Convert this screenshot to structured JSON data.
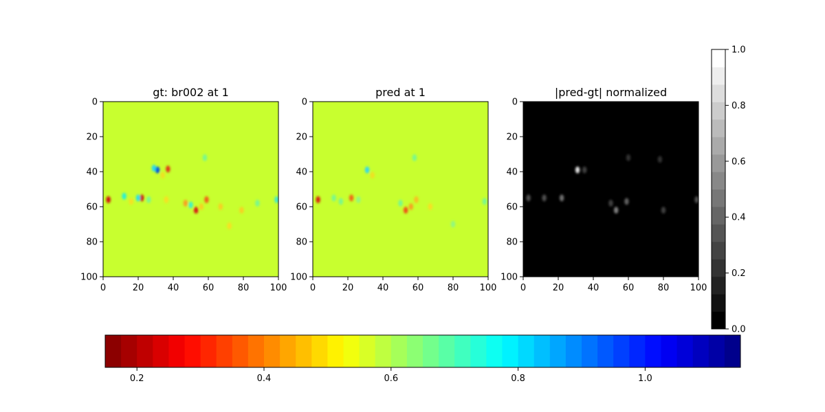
{
  "chart_data": [
    {
      "type": "heatmap",
      "title": "gt: br002 at 1",
      "colormap": "jet (reversed)",
      "background_color": "#c8ff2f",
      "xlim": [
        0,
        100
      ],
      "ylim": [
        100,
        0
      ],
      "xticks": [
        "0",
        "20",
        "40",
        "60",
        "80",
        "100"
      ],
      "yticks": [
        "0",
        "20",
        "40",
        "60",
        "80",
        "100"
      ],
      "blobs": [
        {
          "x": 3,
          "y": 56,
          "color": "#d01010"
        },
        {
          "x": 31,
          "y": 39,
          "color": "#0050e0"
        },
        {
          "x": 34,
          "y": 42,
          "color": "#f0e020"
        },
        {
          "x": 37,
          "y": 38.5,
          "color": "#e03818"
        },
        {
          "x": 22,
          "y": 55,
          "color": "#c81010"
        },
        {
          "x": 12,
          "y": 54,
          "color": "#28f0d8"
        },
        {
          "x": 20,
          "y": 55,
          "color": "#28e0e8"
        },
        {
          "x": 53,
          "y": 62,
          "color": "#d81818"
        },
        {
          "x": 59,
          "y": 56,
          "color": "#f06018"
        },
        {
          "x": 67,
          "y": 60,
          "color": "#f8d020"
        },
        {
          "x": 50,
          "y": 59,
          "color": "#40f0c8"
        },
        {
          "x": 99,
          "y": 56,
          "color": "#40e8d0"
        },
        {
          "x": 79,
          "y": 62,
          "color": "#f8d020"
        },
        {
          "x": 88,
          "y": 58,
          "color": "#78f890"
        },
        {
          "x": 16,
          "y": 57,
          "color": "#f8e020"
        },
        {
          "x": 47,
          "y": 58,
          "color": "#f8a020"
        },
        {
          "x": 29,
          "y": 38,
          "color": "#28d8f0"
        },
        {
          "x": 56,
          "y": 60,
          "color": "#f8d020"
        },
        {
          "x": 72,
          "y": 71,
          "color": "#f8e020"
        },
        {
          "x": 58,
          "y": 32,
          "color": "#78f890"
        },
        {
          "x": 26,
          "y": 56,
          "color": "#78f890"
        },
        {
          "x": 36,
          "y": 56,
          "color": "#f8e020"
        }
      ]
    },
    {
      "type": "heatmap",
      "title": "pred at 1",
      "colormap": "jet (reversed)",
      "background_color": "#c8ff2f",
      "xlim": [
        0,
        100
      ],
      "ylim": [
        100,
        0
      ],
      "xticks": [
        "0",
        "20",
        "40",
        "60",
        "80",
        "100"
      ],
      "yticks": [
        "0",
        "20",
        "40",
        "60",
        "80",
        "100"
      ],
      "blobs": [
        {
          "x": 3,
          "y": 56,
          "color": "#d82010"
        },
        {
          "x": 31,
          "y": 39,
          "color": "#30d8f0"
        },
        {
          "x": 34,
          "y": 42,
          "color": "#f0e020"
        },
        {
          "x": 22,
          "y": 55,
          "color": "#f06818"
        },
        {
          "x": 12,
          "y": 55,
          "color": "#78f890"
        },
        {
          "x": 16,
          "y": 57,
          "color": "#78f890"
        },
        {
          "x": 53,
          "y": 62,
          "color": "#f05018"
        },
        {
          "x": 59,
          "y": 56,
          "color": "#f8c020"
        },
        {
          "x": 67,
          "y": 60,
          "color": "#f8e020"
        },
        {
          "x": 50,
          "y": 58,
          "color": "#78f890"
        },
        {
          "x": 98,
          "y": 57,
          "color": "#78f890"
        },
        {
          "x": 56,
          "y": 60,
          "color": "#f8a020"
        },
        {
          "x": 58,
          "y": 32,
          "color": "#78f890"
        },
        {
          "x": 80,
          "y": 70,
          "color": "#90f880"
        },
        {
          "x": 26,
          "y": 56,
          "color": "#90f880"
        }
      ]
    },
    {
      "type": "heatmap",
      "title": "|pred-gt| normalized",
      "colormap": "gray",
      "background_color": "#000000",
      "xlim": [
        0,
        100
      ],
      "ylim": [
        100,
        0
      ],
      "xticks": [
        "0",
        "20",
        "40",
        "60",
        "80",
        "100"
      ],
      "yticks": [
        "0",
        "20",
        "40",
        "60",
        "80",
        "100"
      ],
      "blobs": [
        {
          "x": 31,
          "y": 39,
          "color": "#e0e0e0"
        },
        {
          "x": 22,
          "y": 55,
          "color": "#707070"
        },
        {
          "x": 12,
          "y": 55,
          "color": "#505050"
        },
        {
          "x": 3,
          "y": 55,
          "color": "#505050"
        },
        {
          "x": 53,
          "y": 62,
          "color": "#808080"
        },
        {
          "x": 59,
          "y": 57,
          "color": "#606060"
        },
        {
          "x": 99,
          "y": 56,
          "color": "#505050"
        },
        {
          "x": 35,
          "y": 39,
          "color": "#404040"
        },
        {
          "x": 80,
          "y": 62,
          "color": "#404040"
        },
        {
          "x": 50,
          "y": 58,
          "color": "#404040"
        },
        {
          "x": 60,
          "y": 32,
          "color": "#303030"
        },
        {
          "x": 78,
          "y": 33,
          "color": "#303030"
        }
      ]
    }
  ],
  "colorbars": {
    "gray": {
      "orientation": "vertical",
      "range": [
        0,
        1
      ],
      "ticks": [
        "0.0",
        "0.2",
        "0.4",
        "0.6",
        "0.8",
        "1.0"
      ],
      "levels": 16
    },
    "jet": {
      "orientation": "horizontal",
      "range": [
        0.15,
        1.15
      ],
      "ticks": [
        {
          "value": 0.2,
          "label": "0.2"
        },
        {
          "value": 0.4,
          "label": "0.4"
        },
        {
          "value": 0.6,
          "label": "0.6"
        },
        {
          "value": 0.8,
          "label": "0.8"
        },
        {
          "value": 1.0,
          "label": "1.0"
        }
      ],
      "levels": 40
    }
  }
}
